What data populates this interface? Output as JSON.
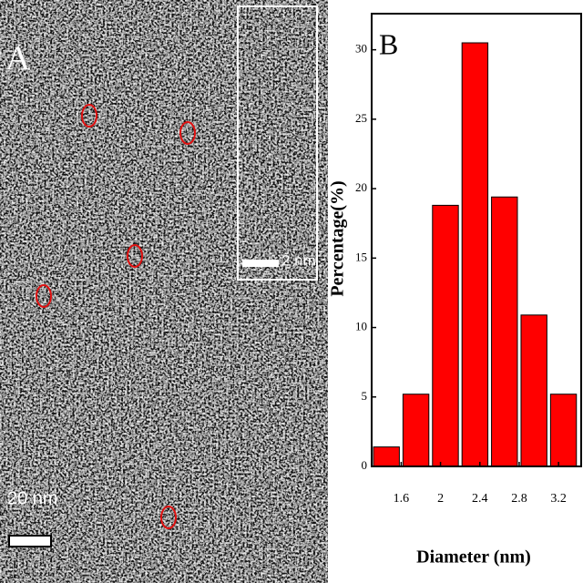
{
  "panel_a": {
    "label": "A",
    "scale_bar": "20 nm",
    "inset_scale_bar": "2 nm"
  },
  "chart_data": {
    "type": "histogram",
    "panel_label": "B",
    "xlabel": "Diameter (nm)",
    "ylabel": "Percentage(%)",
    "bins": [
      1.3,
      1.6,
      1.9,
      2.2,
      2.5,
      2.8,
      3.1,
      3.4
    ],
    "values": [
      1.4,
      5.2,
      18.8,
      30.5,
      19.4,
      10.9,
      5.2
    ],
    "color": "#ff0000",
    "xlim": [
      1.3,
      3.43
    ],
    "xticks": [
      1.6,
      2.0,
      2.4,
      2.8,
      3.2
    ],
    "ylim": [
      0,
      32.6
    ],
    "yticks": [
      0,
      5,
      10,
      15,
      20,
      25,
      30
    ]
  }
}
